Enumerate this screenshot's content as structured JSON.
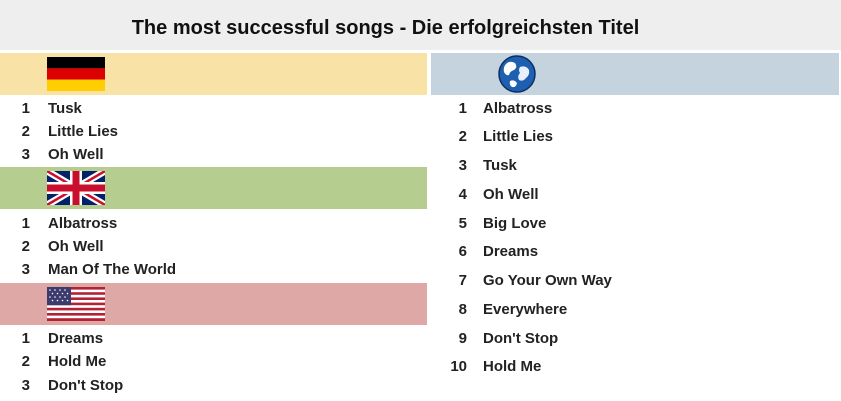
{
  "title": "The most successful songs - Die erfolgreichsten Titel",
  "colors": {
    "de_band": "#f8e2a6",
    "uk_band": "#b5cd8f",
    "us_band": "#dea8a7",
    "world_band": "#c5d3de"
  },
  "sections": {
    "de": {
      "flag_icon": "germany-flag-icon",
      "items": [
        {
          "rank": "1",
          "title": "Tusk"
        },
        {
          "rank": "2",
          "title": "Little Lies"
        },
        {
          "rank": "3",
          "title": "Oh Well"
        }
      ]
    },
    "uk": {
      "flag_icon": "uk-flag-icon",
      "items": [
        {
          "rank": "1",
          "title": "Albatross"
        },
        {
          "rank": "2",
          "title": "Oh Well"
        },
        {
          "rank": "3",
          "title": "Man Of The World"
        }
      ]
    },
    "us": {
      "flag_icon": "usa-flag-icon",
      "items": [
        {
          "rank": "1",
          "title": "Dreams"
        },
        {
          "rank": "2",
          "title": "Hold Me"
        },
        {
          "rank": "3",
          "title": "Don't Stop"
        }
      ]
    },
    "world": {
      "flag_icon": "globe-icon",
      "items": [
        {
          "rank": "1",
          "title": "Albatross"
        },
        {
          "rank": "2",
          "title": "Little Lies"
        },
        {
          "rank": "3",
          "title": "Tusk"
        },
        {
          "rank": "4",
          "title": "Oh Well"
        },
        {
          "rank": "5",
          "title": "Big Love"
        },
        {
          "rank": "6",
          "title": "Dreams"
        },
        {
          "rank": "7",
          "title": "Go Your Own Way"
        },
        {
          "rank": "8",
          "title": "Everywhere"
        },
        {
          "rank": "9",
          "title": "Don't Stop"
        },
        {
          "rank": "10",
          "title": "Hold Me"
        }
      ]
    }
  }
}
